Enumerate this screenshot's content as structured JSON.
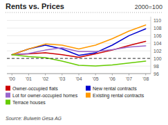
{
  "chart_data": {
    "type": "line",
    "title": "Rents vs. Prices",
    "subtitle": "2000=100",
    "annotations": [
      "Source: Bulwein Gesa AG"
    ],
    "categories": [
      "'00",
      "'01",
      "'02",
      "'03",
      "'04",
      "'05",
      "'06",
      "'07",
      "'08"
    ],
    "series": [
      {
        "name": "Owner-occupied flats",
        "color": "#cc0000",
        "values": [
          101.0,
          101.2,
          101.5,
          101.0,
          100.3,
          101.2,
          102.2,
          103.4,
          104.5
        ]
      },
      {
        "name": "New rental contracts",
        "color": "#0000cc",
        "values": [
          101.0,
          102.5,
          103.5,
          102.5,
          100.8,
          101.5,
          103.5,
          106.0,
          107.8
        ]
      },
      {
        "name": "Lot for owner-occupied homes",
        "color": "#9966cc",
        "values": [
          101.0,
          101.3,
          102.2,
          102.8,
          101.8,
          101.8,
          102.3,
          103.0,
          103.3
        ]
      },
      {
        "name": "Existing rental contracts",
        "color": "#ff9900",
        "values": [
          101.0,
          102.5,
          103.8,
          103.5,
          102.5,
          103.5,
          105.2,
          107.2,
          108.8
        ]
      },
      {
        "name": "Terrace houses",
        "color": "#66cc00",
        "values": [
          101.0,
          100.5,
          100.2,
          99.3,
          98.2,
          98.0,
          98.3,
          98.8,
          99.3
        ]
      }
    ],
    "reference_line": 100,
    "ylim": [
      96,
      111
    ],
    "yticks": [
      96,
      98,
      100,
      102,
      104,
      106,
      108,
      110
    ],
    "grid": true,
    "legend": "bottom"
  }
}
